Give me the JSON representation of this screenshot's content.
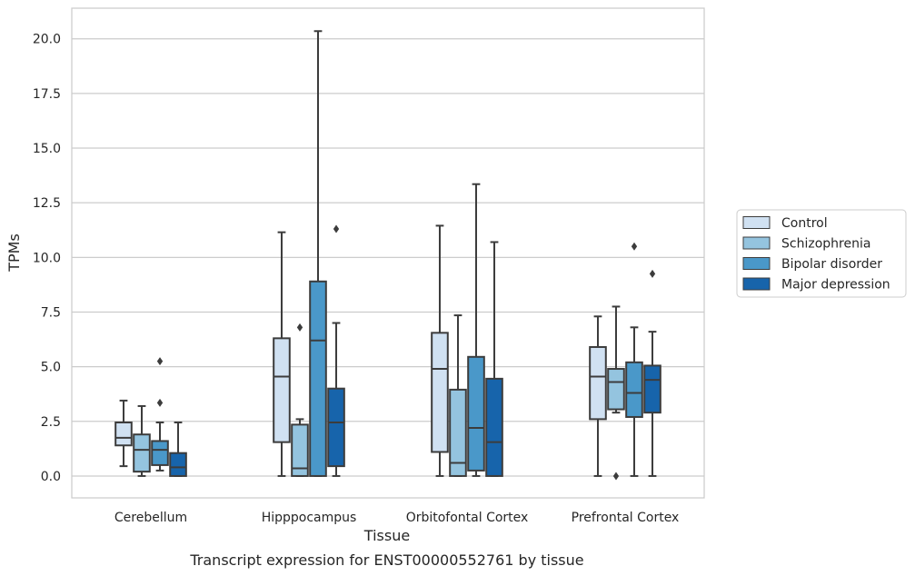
{
  "chart_data": {
    "type": "box",
    "title": "",
    "caption": "Transcript expression for ENST00000552761 by tissue",
    "xlabel": "Tissue",
    "ylabel": "TPMs",
    "ylim": [
      -1.0,
      21.4
    ],
    "yticks": [
      "0.0",
      "2.5",
      "5.0",
      "7.5",
      "10.0",
      "12.5",
      "15.0",
      "17.5",
      "20.0"
    ],
    "ytick_values": [
      0,
      2.5,
      5,
      7.5,
      10,
      12.5,
      15,
      17.5,
      20
    ],
    "categories": [
      "Cerebellum",
      "Hipppocampus",
      "Orbitofontal Cortex",
      "Prefrontal Cortex"
    ],
    "grid": "horizontal",
    "legend_position": "right",
    "series": [
      {
        "name": "Control",
        "color": "#d0e1f2",
        "boxes": [
          {
            "min": 0.45,
            "q1": 1.4,
            "median": 1.75,
            "q3": 2.45,
            "max": 3.45,
            "outliers": []
          },
          {
            "min": 0.0,
            "q1": 1.55,
            "median": 4.55,
            "q3": 6.3,
            "max": 11.15,
            "outliers": []
          },
          {
            "min": 0.0,
            "q1": 1.1,
            "median": 4.9,
            "q3": 6.55,
            "max": 11.45,
            "outliers": []
          },
          {
            "min": 0.0,
            "q1": 2.6,
            "median": 4.55,
            "q3": 5.9,
            "max": 7.3,
            "outliers": []
          }
        ]
      },
      {
        "name": "Schizophrenia",
        "color": "#94c4df",
        "boxes": [
          {
            "min": 0.0,
            "q1": 0.2,
            "median": 1.2,
            "q3": 1.9,
            "max": 3.2,
            "outliers": []
          },
          {
            "min": 0.0,
            "q1": 0.0,
            "median": 0.35,
            "q3": 2.35,
            "max": 2.6,
            "outliers": [
              6.8
            ]
          },
          {
            "min": 0.0,
            "q1": 0.0,
            "median": 0.6,
            "q3": 3.95,
            "max": 7.35,
            "outliers": []
          },
          {
            "min": 2.9,
            "q1": 3.05,
            "median": 4.3,
            "q3": 4.9,
            "max": 7.75,
            "outliers": [
              0.0
            ]
          }
        ]
      },
      {
        "name": "Bipolar disorder",
        "color": "#4a98c9",
        "boxes": [
          {
            "min": 0.25,
            "q1": 0.5,
            "median": 1.2,
            "q3": 1.6,
            "max": 2.45,
            "outliers": [
              3.35,
              5.25
            ]
          },
          {
            "min": 0.0,
            "q1": 0.0,
            "median": 6.2,
            "q3": 8.9,
            "max": 20.35,
            "outliers": []
          },
          {
            "min": 0.0,
            "q1": 0.25,
            "median": 2.2,
            "q3": 5.45,
            "max": 13.35,
            "outliers": []
          },
          {
            "min": 0.0,
            "q1": 2.7,
            "median": 3.8,
            "q3": 5.2,
            "max": 6.8,
            "outliers": [
              10.5
            ]
          }
        ]
      },
      {
        "name": "Major depression",
        "color": "#1764ab",
        "boxes": [
          {
            "min": 0.0,
            "q1": 0.0,
            "median": 0.4,
            "q3": 1.05,
            "max": 2.45,
            "outliers": []
          },
          {
            "min": 0.0,
            "q1": 0.45,
            "median": 2.45,
            "q3": 4.0,
            "max": 7.0,
            "outliers": [
              11.3
            ]
          },
          {
            "min": 0.0,
            "q1": 0.0,
            "median": 1.55,
            "q3": 4.45,
            "max": 10.7,
            "outliers": []
          },
          {
            "min": 0.0,
            "q1": 2.9,
            "median": 4.4,
            "q3": 5.05,
            "max": 6.6,
            "outliers": [
              9.25
            ]
          }
        ]
      }
    ]
  }
}
